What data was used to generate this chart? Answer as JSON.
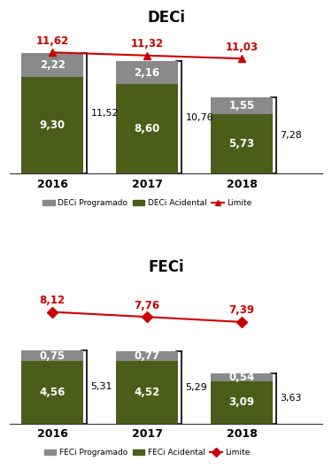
{
  "deci": {
    "title": "DECi",
    "years": [
      "2016",
      "2017",
      "2018"
    ],
    "programado": [
      2.22,
      2.16,
      1.55
    ],
    "acidental": [
      9.3,
      8.6,
      5.73
    ],
    "total": [
      11.52,
      10.76,
      7.28
    ],
    "limite": [
      11.62,
      11.32,
      11.03
    ],
    "total_labels": [
      "11,52",
      "10,76",
      "7,28"
    ],
    "limite_labels": [
      "11,62",
      "11,32",
      "11,03"
    ],
    "programado_labels": [
      "2,22",
      "2,16",
      "1,55"
    ],
    "acidental_labels": [
      "9,30",
      "8,60",
      "5,73"
    ],
    "legend": [
      "DECi Programado",
      "DECi Acidental",
      "Limite"
    ],
    "color_programado": "#8a8a8a",
    "color_acidental": "#4a5e1a",
    "color_limite": "#cc0000",
    "ylim": 13.8,
    "marker": "^"
  },
  "feci": {
    "title": "FECi",
    "years": [
      "2016",
      "2017",
      "2018"
    ],
    "programado": [
      0.75,
      0.77,
      0.54
    ],
    "acidental": [
      4.56,
      4.52,
      3.09
    ],
    "total": [
      5.31,
      5.29,
      3.63
    ],
    "limite": [
      8.12,
      7.76,
      7.39
    ],
    "total_labels": [
      "5,31",
      "5,29",
      "3,63"
    ],
    "limite_labels": [
      "8,12",
      "7,76",
      "7,39"
    ],
    "programado_labels": [
      "0,75",
      "0,77",
      "0,54"
    ],
    "acidental_labels": [
      "4,56",
      "4,52",
      "3,09"
    ],
    "legend": [
      "FECi Programado",
      "FECi Acidental",
      "Limite"
    ],
    "color_programado": "#8a8a8a",
    "color_acidental": "#4a5e1a",
    "color_limite": "#cc0000",
    "ylim": 10.5,
    "marker": "D"
  },
  "bar_width": 0.65,
  "background_color": "#ffffff",
  "x_positions": [
    0,
    1,
    2
  ],
  "xlim": [
    -0.45,
    2.85
  ]
}
